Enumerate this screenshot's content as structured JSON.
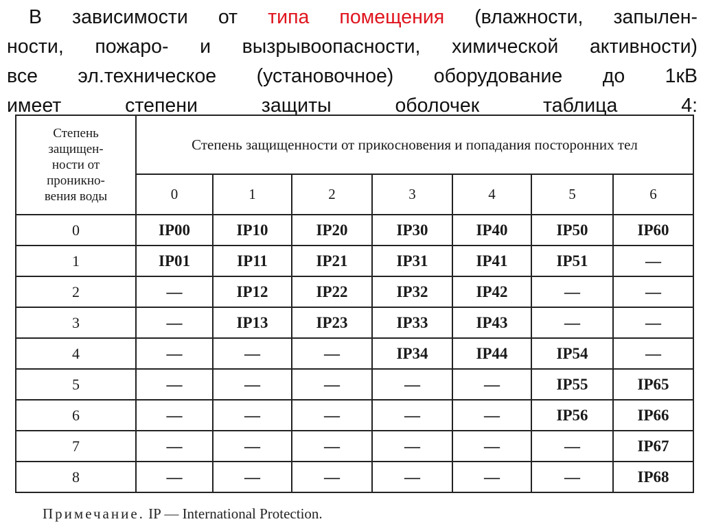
{
  "intro": {
    "lines": [
      [
        "В зависимости от ",
        "типа помещения",
        " (влажности, запылен-"
      ],
      [
        "ности, пожаро- и вызрывоопасности, химической активности)"
      ],
      [
        "все эл.техническое (установочное) оборудование до 1кВ"
      ],
      [
        "имеет степени защиты оболочек  таблица 4:"
      ]
    ]
  },
  "table": {
    "row_header": [
      "Степень",
      "защищен-",
      "ности от",
      "проникно-",
      "вения воды"
    ],
    "column_header": "Степень защищенности от прикосновения и попадания посторонних тел",
    "columns": [
      "0",
      "1",
      "2",
      "3",
      "4",
      "5",
      "6"
    ],
    "rows": [
      {
        "label": "0",
        "cells": [
          "IP00",
          "IP10",
          "IP20",
          "IP30",
          "IP40",
          "IP50",
          "IP60"
        ]
      },
      {
        "label": "1",
        "cells": [
          "IP01",
          "IP11",
          "IP21",
          "IP31",
          "IP41",
          "IP51",
          "—"
        ]
      },
      {
        "label": "2",
        "cells": [
          "—",
          "IP12",
          "IP22",
          "IP32",
          "IP42",
          "—",
          "—"
        ]
      },
      {
        "label": "3",
        "cells": [
          "—",
          "IP13",
          "IP23",
          "IP33",
          "IP43",
          "—",
          "—"
        ]
      },
      {
        "label": "4",
        "cells": [
          "—",
          "—",
          "—",
          "IP34",
          "IP44",
          "IP54",
          "—"
        ]
      },
      {
        "label": "5",
        "cells": [
          "—",
          "—",
          "—",
          "—",
          "—",
          "IP55",
          "IP65"
        ]
      },
      {
        "label": "6",
        "cells": [
          "—",
          "—",
          "—",
          "—",
          "—",
          "IP56",
          "IP66"
        ]
      },
      {
        "label": "7",
        "cells": [
          "—",
          "—",
          "—",
          "—",
          "—",
          "—",
          "IP67"
        ]
      },
      {
        "label": "8",
        "cells": [
          "—",
          "—",
          "—",
          "—",
          "—",
          "—",
          "IP68"
        ]
      }
    ]
  },
  "note": {
    "label": "Примечание.",
    "text": "IP — International Protection."
  }
}
